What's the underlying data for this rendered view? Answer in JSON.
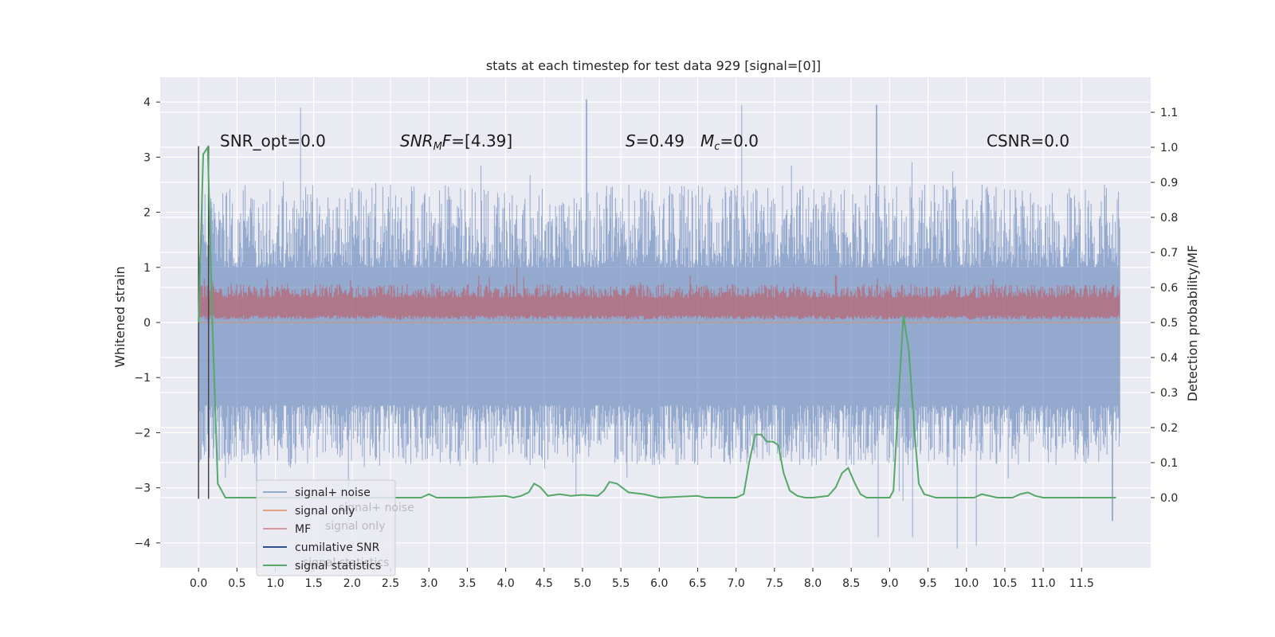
{
  "chart_data": {
    "type": "line",
    "title": "stats at each timestep for test data 929 [signal=[0]]",
    "ylabel": "Whitened strain",
    "y2label": "Detection probability/MF",
    "xlim": [
      -0.5,
      12.4
    ],
    "ylim": [
      -4.45,
      4.45
    ],
    "y2lim": [
      -0.2,
      1.2
    ],
    "x_ticks": [
      0.0,
      0.5,
      1.0,
      1.5,
      2.0,
      2.5,
      3.0,
      3.5,
      4.0,
      4.5,
      5.0,
      5.5,
      6.0,
      6.5,
      7.0,
      7.5,
      8.0,
      8.5,
      9.0,
      9.5,
      10.0,
      10.5,
      11.0,
      11.5
    ],
    "x_tick_labels": [
      "0.0",
      "0.5",
      "1.0",
      "1.5",
      "2.0",
      "2.5",
      "3.0",
      "3.5",
      "4.0",
      "4.5",
      "5.0",
      "5.5",
      "6.0",
      "6.5",
      "7.0",
      "7.5",
      "8.0",
      "8.5",
      "9.0",
      "9.5",
      "10.0",
      "10.5",
      "11.0",
      "11.5"
    ],
    "y_ticks": [
      -4,
      -3,
      -2,
      -1,
      0,
      1,
      2,
      3,
      4
    ],
    "y_tick_labels": [
      "−4",
      "−3",
      "−2",
      "−1",
      "0",
      "1",
      "2",
      "3",
      "4"
    ],
    "y2_ticks": [
      0.0,
      0.1,
      0.2,
      0.3,
      0.4,
      0.5,
      0.6,
      0.7,
      0.8,
      0.9,
      1.0,
      1.1
    ],
    "y2_tick_labels": [
      "0.0",
      "0.1",
      "0.2",
      "0.3",
      "0.4",
      "0.5",
      "0.6",
      "0.7",
      "0.8",
      "0.9",
      "1.0",
      "1.1"
    ],
    "grid": true,
    "legend_position": "lower-left",
    "annotations": {
      "snr_opt": "SNR_opt=0.0",
      "snr_mf_main": "SNR",
      "snr_mf_sub": "M",
      "snr_mf_tail": "F=[4.39]",
      "s_main": "S",
      "s_tail": "=0.49",
      "mc_main": "M",
      "mc_sub": "c",
      "mc_tail": "=0.0",
      "csnr": "CSNR=0.0"
    },
    "noise": {
      "x_start": 0.0,
      "x_end": 12.0,
      "center": 0.0,
      "band_upper": [
        1.0,
        2.5
      ],
      "band_lower": [
        -1.5,
        -2.6
      ],
      "peaks_up": [
        [
          1.33,
          3.9
        ],
        [
          5.05,
          4.05
        ],
        [
          7.08,
          3.95
        ],
        [
          8.83,
          3.95
        ]
      ],
      "peaks_down": [
        [
          9.88,
          -4.1
        ],
        [
          10.13,
          -4.05
        ],
        [
          1.95,
          -3.75
        ],
        [
          9.3,
          -3.9
        ],
        [
          8.85,
          -3.9
        ],
        [
          11.9,
          -3.6
        ]
      ]
    },
    "signal_only": {
      "x": [
        0.0,
        12.0
      ],
      "y": [
        0.0,
        0.0
      ]
    },
    "mf": {
      "x_start": 0.0,
      "x_end": 12.0,
      "base": 0.05,
      "top": [
        0.45,
        0.7
      ],
      "peaks": [
        [
          4.15,
          1.0
        ],
        [
          3.65,
          0.85
        ],
        [
          6.4,
          0.85
        ],
        [
          8.3,
          0.85
        ],
        [
          10.35,
          0.8
        ]
      ]
    },
    "cumulative_snr": [
      {
        "x": 0.0,
        "y": [
          -3.2,
          3.2
        ]
      },
      {
        "x": 0.13,
        "y": [
          -3.2,
          3.2
        ]
      }
    ],
    "signal_statistics": {
      "x": [
        0.0,
        0.06,
        0.12,
        0.18,
        0.25,
        0.35,
        0.5,
        1.0,
        2.0,
        2.9,
        3.0,
        3.1,
        3.5,
        4.0,
        4.1,
        4.2,
        4.3,
        4.37,
        4.45,
        4.55,
        4.7,
        4.85,
        5.0,
        5.2,
        5.28,
        5.35,
        5.45,
        5.6,
        5.8,
        6.0,
        6.5,
        6.6,
        6.7,
        7.0,
        7.1,
        7.17,
        7.25,
        7.33,
        7.4,
        7.48,
        7.55,
        7.62,
        7.7,
        7.8,
        7.9,
        8.0,
        8.2,
        8.3,
        8.38,
        8.46,
        8.55,
        8.62,
        8.7,
        9.0,
        9.05,
        9.12,
        9.18,
        9.25,
        9.32,
        9.38,
        9.45,
        9.6,
        9.8,
        10.0,
        10.1,
        10.2,
        10.4,
        10.6,
        10.7,
        10.8,
        10.9,
        11.0,
        11.5,
        11.95
      ],
      "y": [
        0.5,
        0.98,
        1.0,
        0.5,
        0.04,
        0.0,
        0.0,
        0.0,
        0.0,
        0.0,
        0.01,
        0.0,
        0.0,
        0.005,
        0.0,
        0.005,
        0.015,
        0.04,
        0.03,
        0.005,
        0.01,
        0.005,
        0.008,
        0.005,
        0.02,
        0.045,
        0.04,
        0.015,
        0.01,
        0.0,
        0.005,
        0.0,
        0.0,
        0.0,
        0.01,
        0.1,
        0.18,
        0.18,
        0.16,
        0.16,
        0.15,
        0.07,
        0.02,
        0.005,
        0.0,
        0.0,
        0.005,
        0.03,
        0.07,
        0.085,
        0.04,
        0.01,
        0.0,
        0.0,
        0.02,
        0.3,
        0.52,
        0.42,
        0.2,
        0.04,
        0.01,
        0.0,
        0.0,
        0.0,
        0.0,
        0.01,
        0.0,
        0.0,
        0.01,
        0.015,
        0.005,
        0.0,
        0.0,
        0.0
      ]
    },
    "legend": [
      {
        "key": "noise",
        "label": "signal+ noise",
        "color": "#4c72b0",
        "alpha": 0.55
      },
      {
        "key": "signal",
        "label": "signal only",
        "color": "#dd8452",
        "alpha": 0.7
      },
      {
        "key": "mf",
        "label": "MF",
        "color": "#c44e52",
        "alpha": 0.55
      },
      {
        "key": "csnr",
        "label": "cumilative SNR",
        "color": "#2d4f8e",
        "alpha": 1.0
      },
      {
        "key": "stats",
        "label": "signal statistics",
        "color": "#55a868",
        "alpha": 1.0
      }
    ],
    "legend_ghost_labels": [
      "signal+ noise",
      "signal only",
      "signal statistics"
    ],
    "colors": {
      "axes_bg": "#eaeaf2",
      "grid": "#ffffff",
      "noise": "#4c72b0",
      "mf": "#c44e52",
      "signal": "#dd8452",
      "stats": "#55a868",
      "csnr": "#2d4f8e",
      "legend_bg": "#eaeaf2",
      "legend_border": "#cccccc"
    }
  }
}
